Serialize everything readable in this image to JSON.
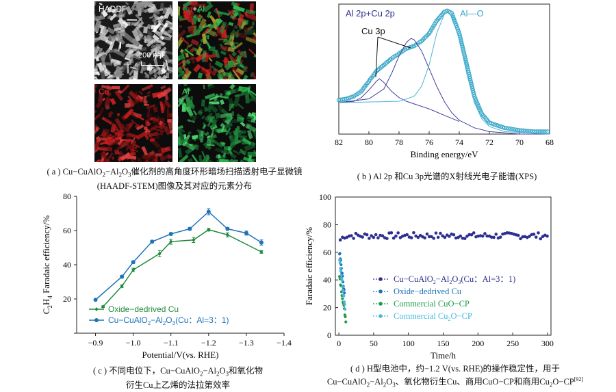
{
  "panel_a": {
    "labels": {
      "haadf": "HADDF",
      "cual_cu": "Cu",
      "cual_plus": "+",
      "cual_al": "Al",
      "cu": "Cu",
      "al": "Al"
    },
    "scalebar": "200 nm",
    "caption_line1_pre": "( a ) Cu−CuAlO",
    "caption_line1_mid": "−Al",
    "caption_line1_sub2": "2",
    "caption_line1_sub3": "3",
    "caption_line1_o": "O",
    "caption_line1_post": "催化剂的高角度环形暗场扫描透射电子显微镜",
    "caption_line2": "(HAADF-STEM)图像及其对应的元素分布",
    "colors": {
      "haadf": "#cfcfcf",
      "cu": "#d21f1f",
      "al": "#2fbf52"
    }
  },
  "panel_b": {
    "caption": "( b ) Al 2p 和Cu 3p光谱的X射线光电子能谱(XPS)",
    "chart_data": {
      "type": "line",
      "xlabel": "Binding energy/eV",
      "xlim": [
        82,
        68
      ],
      "xticks": [
        "82",
        "80",
        "78",
        "76",
        "74",
        "72",
        "70",
        "68"
      ],
      "annotations": [
        "Al 2p+Cu 2p",
        "Cu 3p",
        "Al—O"
      ],
      "series": [
        {
          "name": "raw",
          "style": "open-circles",
          "color": "#3aa7c8",
          "x": [
            82,
            81.5,
            81,
            80.5,
            80,
            79.5,
            79,
            78.5,
            78,
            77.5,
            77,
            76.5,
            76,
            75.5,
            75,
            74.8,
            74.5,
            74,
            73.5,
            73,
            72.5,
            72,
            71,
            70,
            69,
            68
          ],
          "y": [
            0.27,
            0.28,
            0.3,
            0.34,
            0.42,
            0.5,
            0.55,
            0.6,
            0.64,
            0.68,
            0.7,
            0.74,
            0.8,
            0.9,
            0.97,
            0.98,
            0.96,
            0.8,
            0.55,
            0.3,
            0.16,
            0.09,
            0.05,
            0.03,
            0.02,
            0.02
          ]
        },
        {
          "name": "Cu 3p peak 1",
          "style": "line",
          "color": "#3b3b9a",
          "x": [
            82,
            81,
            80.5,
            80,
            79.5,
            79.3,
            79,
            78.5,
            78,
            77.5,
            77,
            76,
            75,
            74
          ],
          "y": [
            0.25,
            0.26,
            0.29,
            0.35,
            0.42,
            0.44,
            0.41,
            0.34,
            0.29,
            0.26,
            0.24,
            0.2,
            0.15,
            0.1
          ]
        },
        {
          "name": "Cu 3p peak 2",
          "style": "line",
          "color": "#3b3b9a",
          "x": [
            82,
            80,
            79,
            78.5,
            78,
            77.5,
            77.2,
            77,
            76.5,
            76,
            75.5,
            75,
            74.5,
            74,
            73,
            72,
            71,
            70,
            68
          ],
          "y": [
            0.25,
            0.28,
            0.36,
            0.48,
            0.62,
            0.73,
            0.76,
            0.75,
            0.66,
            0.52,
            0.38,
            0.26,
            0.17,
            0.11,
            0.05,
            0.02,
            0.01,
            0.0,
            0.0
          ]
        },
        {
          "name": "Al—O peak",
          "style": "line",
          "color": "#49b6d8",
          "x": [
            82,
            78,
            77,
            76.5,
            76,
            75.5,
            75,
            74.8,
            74.5,
            74,
            73.5,
            73,
            72.5,
            72,
            71,
            68
          ],
          "y": [
            0.25,
            0.26,
            0.3,
            0.38,
            0.55,
            0.8,
            0.95,
            0.97,
            0.94,
            0.75,
            0.48,
            0.25,
            0.12,
            0.06,
            0.02,
            0.0
          ]
        }
      ]
    }
  },
  "panel_c": {
    "caption_line1_pre": "( c ) 不同电位下，Cu−CuAlO",
    "caption_line1_mid": "−Al",
    "caption_line1_o": "O",
    "caption_line1_post": "和氧化物",
    "caption_line2": "衍生Cu上乙烯的法拉第效率",
    "chart_data": {
      "type": "line",
      "xlabel": "Potential/V(vs. RHE)",
      "ylabel_pre": "C",
      "ylabel_sub1": "2",
      "ylabel_mid": "H",
      "ylabel_sub2": "4",
      "ylabel_post": " Faradaic efficiency/%",
      "xlim": [
        -0.85,
        -1.4
      ],
      "ylim": [
        0,
        80
      ],
      "xticks": [
        -0.9,
        -1.0,
        -1.1,
        -1.2,
        -1.3,
        -1.4
      ],
      "xtick_labels": [
        "−0.9",
        "−1.0",
        "−1.1",
        "−1.2",
        "−1.3",
        "−1.4"
      ],
      "yticks": [
        0,
        20,
        40,
        60,
        80
      ],
      "ytick_labels": [
        "",
        "20",
        "40",
        "60",
        "80"
      ],
      "series": [
        {
          "name": "Oxide−dedrived Cu",
          "color": "#1e8a3a",
          "marker": "diamond",
          "x": [
            -0.92,
            -0.97,
            -1.0,
            -1.07,
            -1.1,
            -1.16,
            -1.2,
            -1.25,
            -1.34
          ],
          "y": [
            15.5,
            27.5,
            37,
            46.5,
            53.5,
            54.5,
            60.5,
            57.5,
            47.5
          ],
          "err": [
            0.5,
            0.8,
            1.0,
            1.8,
            1.5,
            1.5,
            0.8,
            1.2,
            0.8
          ]
        },
        {
          "name_pre": "Cu−CuAlO",
          "name_sub1": "2",
          "name_mid": "−Al",
          "name_sub2": "2",
          "name_o": "O",
          "name_sub3": "3",
          "name_post": "(Cu：Al=3：1)",
          "color": "#1f73b7",
          "marker": "circle",
          "x": [
            -0.9,
            -0.97,
            -1.0,
            -1.05,
            -1.1,
            -1.15,
            -1.2,
            -1.25,
            -1.3,
            -1.34
          ],
          "y": [
            19.5,
            33,
            41.5,
            53.5,
            58,
            61,
            71,
            61,
            58.5,
            53
          ],
          "err": [
            0.5,
            0.8,
            0.8,
            0.8,
            0.8,
            0.8,
            1.8,
            0.8,
            1.2,
            1.5
          ]
        }
      ]
    }
  },
  "panel_d": {
    "caption_line1": "( d ) H型电池中，约−1.2 V(vs. RHE)的操作稳定性，用于",
    "caption_line2_pre": "Cu−CuAlO",
    "caption_line2_mid": "−Al",
    "caption_line2_o": "O",
    "caption_line2_post": "、氧化物衍生Cu、商用CuO−CP和商用Cu",
    "caption_line2_o2": "O−CP",
    "caption_ref": "[92]",
    "chart_data": {
      "type": "scatter",
      "xlabel": "Time/h",
      "ylabel": "Faradaic efficiency/%",
      "xlim": [
        -5,
        305
      ],
      "ylim": [
        0,
        100
      ],
      "xticks": [
        0,
        50,
        100,
        150,
        200,
        250,
        300
      ],
      "yticks": [
        0,
        20,
        40,
        60,
        80,
        100
      ],
      "series": [
        {
          "name_pre": "Cu−CuAlO",
          "name_sub1": "2",
          "name_mid": "−Al",
          "name_sub2": "2",
          "name_o": "O",
          "name_sub3": "3",
          "name_post": "(Cu：Al=3：1)",
          "color": "#2e2e8f",
          "level": 72,
          "t_end": 300
        },
        {
          "name": "Oxide−dedrived Cu",
          "color": "#1f73b7",
          "decay_from": 60,
          "decay_to": 30,
          "t_end": 8
        },
        {
          "name": "Commercial CuO−CP",
          "color": "#1e9a4a",
          "decay_from": 42,
          "decay_to": 11,
          "t_end": 10
        },
        {
          "name_pre": "Commercial Cu",
          "name_sub": "2",
          "name_post": "O−CP",
          "color": "#46b8e0",
          "decay_from": 55,
          "decay_to": 20,
          "t_end": 9
        }
      ]
    }
  }
}
